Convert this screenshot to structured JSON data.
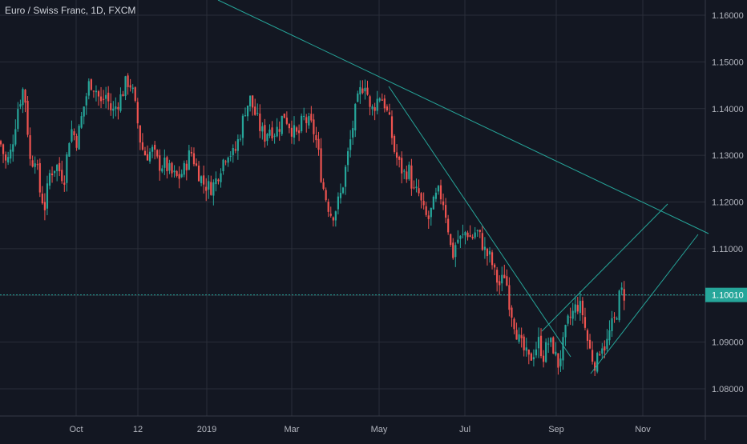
{
  "chart_data": {
    "type": "candlestick",
    "title": "Euro / Swiss Franc, 1D, FXCM",
    "ylim": [
      1.075,
      1.165
    ],
    "y_ticks": [
      "1.16000",
      "1.15000",
      "1.14000",
      "1.13000",
      "1.12000",
      "1.11000",
      "1.09000",
      "1.08000"
    ],
    "x_ticks": [
      "Oct",
      "12",
      "2019",
      "Mar",
      "May",
      "Jul",
      "Sep",
      "Nov"
    ],
    "last_price": "1.10010",
    "grid": true,
    "colors": {
      "background": "#131722",
      "grid": "#2a2e39",
      "up": "#26a69a",
      "down": "#ef5350",
      "trendline": "#26a69a",
      "price_label_bg": "#26a69a"
    },
    "close_path_points": [
      [
        0,
        1.133
      ],
      [
        8,
        1.128
      ],
      [
        14,
        1.131
      ],
      [
        22,
        1.14
      ],
      [
        30,
        1.145
      ],
      [
        38,
        1.128
      ],
      [
        44,
        1.13
      ],
      [
        50,
        1.122
      ],
      [
        56,
        1.119
      ],
      [
        62,
        1.126
      ],
      [
        70,
        1.128
      ],
      [
        80,
        1.125
      ],
      [
        88,
        1.136
      ],
      [
        96,
        1.133
      ],
      [
        104,
        1.14
      ],
      [
        112,
        1.146
      ],
      [
        120,
        1.144
      ],
      [
        126,
        1.141
      ],
      [
        132,
        1.143
      ],
      [
        140,
        1.139
      ],
      [
        146,
        1.141
      ],
      [
        152,
        1.143
      ],
      [
        158,
        1.146
      ],
      [
        164,
        1.145
      ],
      [
        170,
        1.139
      ],
      [
        176,
        1.132
      ],
      [
        182,
        1.13
      ],
      [
        190,
        1.131
      ],
      [
        198,
        1.128
      ],
      [
        206,
        1.128
      ],
      [
        214,
        1.126
      ],
      [
        222,
        1.125
      ],
      [
        230,
        1.127
      ],
      [
        238,
        1.131
      ],
      [
        246,
        1.127
      ],
      [
        254,
        1.124
      ],
      [
        262,
        1.123
      ],
      [
        268,
        1.124
      ],
      [
        276,
        1.128
      ],
      [
        284,
        1.131
      ],
      [
        292,
        1.13
      ],
      [
        300,
        1.135
      ],
      [
        306,
        1.14
      ],
      [
        312,
        1.142
      ],
      [
        318,
        1.139
      ],
      [
        324,
        1.136
      ],
      [
        330,
        1.134
      ],
      [
        336,
        1.136
      ],
      [
        342,
        1.135
      ],
      [
        348,
        1.136
      ],
      [
        354,
        1.139
      ],
      [
        360,
        1.137
      ],
      [
        366,
        1.135
      ],
      [
        372,
        1.134
      ],
      [
        378,
        1.138
      ],
      [
        384,
        1.137
      ],
      [
        390,
        1.136
      ],
      [
        396,
        1.132
      ],
      [
        402,
        1.124
      ],
      [
        408,
        1.12
      ],
      [
        414,
        1.117
      ],
      [
        420,
        1.119
      ],
      [
        426,
        1.122
      ],
      [
        432,
        1.128
      ],
      [
        438,
        1.134
      ],
      [
        444,
        1.14
      ],
      [
        450,
        1.144
      ],
      [
        456,
        1.146
      ],
      [
        462,
        1.139
      ],
      [
        468,
        1.141
      ],
      [
        474,
        1.143
      ],
      [
        480,
        1.141
      ],
      [
        486,
        1.137
      ],
      [
        492,
        1.131
      ],
      [
        498,
        1.128
      ],
      [
        504,
        1.126
      ],
      [
        510,
        1.127
      ],
      [
        516,
        1.122
      ],
      [
        522,
        1.122
      ],
      [
        528,
        1.118
      ],
      [
        534,
        1.116
      ],
      [
        540,
        1.119
      ],
      [
        546,
        1.122
      ],
      [
        552,
        1.121
      ],
      [
        558,
        1.116
      ],
      [
        564,
        1.108
      ],
      [
        570,
        1.112
      ],
      [
        576,
        1.112
      ],
      [
        582,
        1.114
      ],
      [
        588,
        1.112
      ],
      [
        594,
        1.114
      ],
      [
        600,
        1.112
      ],
      [
        606,
        1.109
      ],
      [
        612,
        1.108
      ],
      [
        618,
        1.104
      ],
      [
        624,
        1.102
      ],
      [
        630,
        1.105
      ],
      [
        636,
        1.098
      ],
      [
        642,
        1.094
      ],
      [
        648,
        1.09
      ],
      [
        654,
        1.088
      ],
      [
        660,
        1.086
      ],
      [
        666,
        1.088
      ],
      [
        672,
        1.09
      ],
      [
        678,
        1.087
      ],
      [
        684,
        1.09
      ],
      [
        690,
        1.089
      ],
      [
        696,
        1.085
      ],
      [
        702,
        1.089
      ],
      [
        708,
        1.094
      ],
      [
        714,
        1.096
      ],
      [
        720,
        1.098
      ],
      [
        726,
        1.097
      ],
      [
        732,
        1.091
      ],
      [
        738,
        1.087
      ],
      [
        744,
        1.085
      ],
      [
        750,
        1.09
      ],
      [
        756,
        1.089
      ],
      [
        762,
        1.093
      ],
      [
        768,
        1.095
      ],
      [
        774,
        1.101
      ],
      [
        780,
        1.1
      ]
    ]
  }
}
